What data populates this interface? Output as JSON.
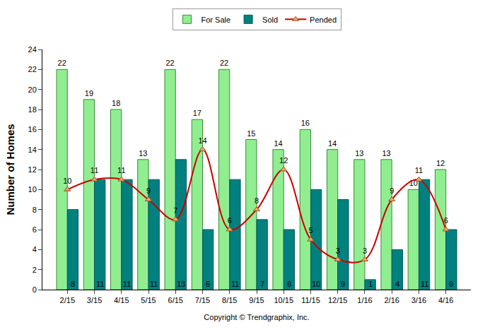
{
  "chart_data": {
    "type": "bar",
    "y_label": "Number of Homes",
    "x_label": "Copyright © Trendgraphix, Inc.",
    "categories": [
      "2/15",
      "3/15",
      "4/15",
      "5/15",
      "6/15",
      "7/15",
      "8/15",
      "9/15",
      "10/15",
      "11/15",
      "12/15",
      "1/16",
      "2/16",
      "3/16",
      "4/16"
    ],
    "series": [
      {
        "name": "For Sale",
        "type": "bar",
        "color": "#90ee90",
        "values": [
          22,
          19,
          18,
          13,
          22,
          17,
          22,
          15,
          14,
          16,
          14,
          13,
          13,
          10,
          12
        ]
      },
      {
        "name": "Sold",
        "type": "bar",
        "color": "#00807f",
        "values": [
          8,
          11,
          11,
          11,
          13,
          6,
          11,
          7,
          6,
          10,
          9,
          1,
          4,
          11,
          6
        ]
      },
      {
        "name": "Pended",
        "type": "line",
        "color": "#cc0000",
        "marker": "triangle-up",
        "line_style": "smooth",
        "values": [
          10,
          11,
          11,
          9,
          7,
          14,
          6,
          8,
          12,
          5,
          3,
          3,
          9,
          11,
          6
        ]
      }
    ],
    "ylim": [
      0,
      24
    ],
    "yticks": [
      0,
      2,
      4,
      6,
      8,
      10,
      12,
      14,
      16,
      18,
      20,
      22,
      24
    ],
    "grid": false,
    "legend": "top",
    "data_labels": true
  }
}
